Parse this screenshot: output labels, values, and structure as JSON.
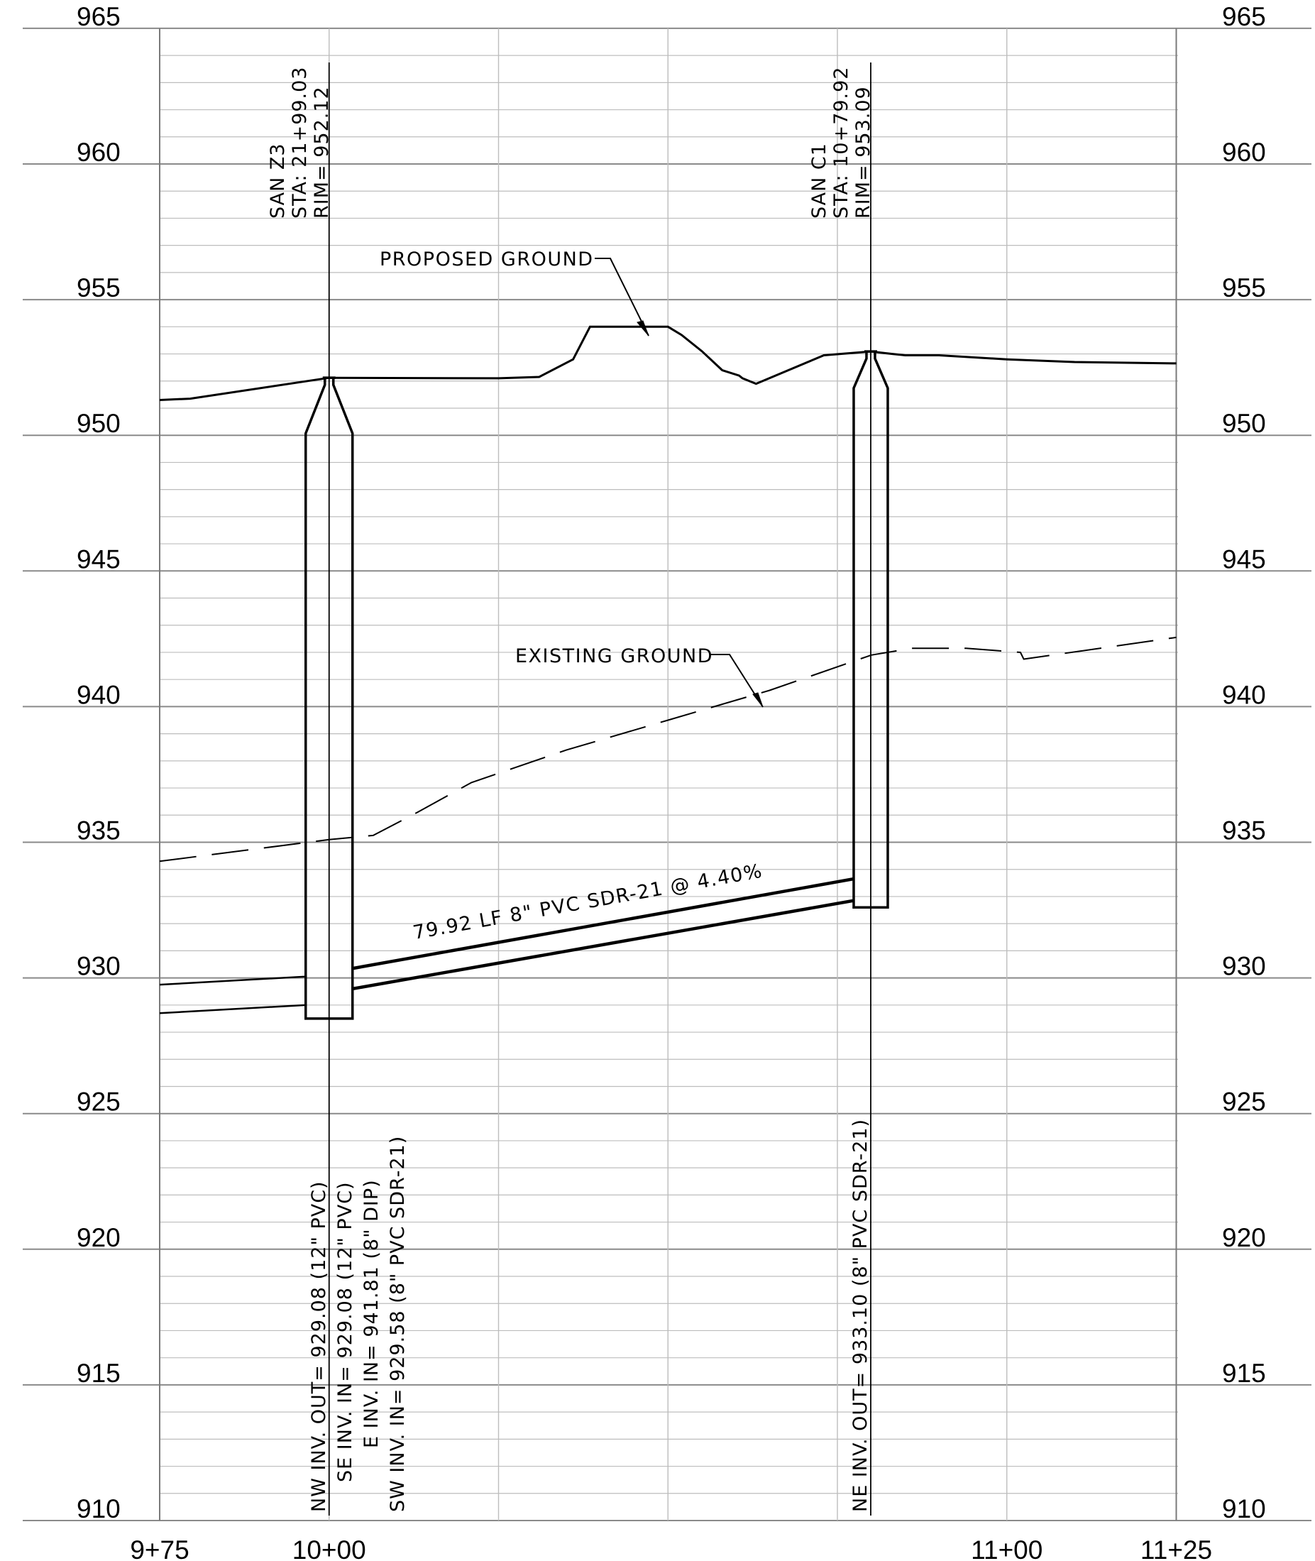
{
  "profile": {
    "elevations": [
      965,
      960,
      955,
      950,
      945,
      940,
      935,
      930,
      925,
      920,
      915,
      910
    ],
    "station_labels": [
      {
        "station": 975,
        "text": "9+75"
      },
      {
        "station": 1000,
        "text": "10+00"
      },
      {
        "station": 1100,
        "text": "11+00"
      },
      {
        "station": 1125,
        "text": "11+25"
      }
    ],
    "manholes": [
      {
        "station": 1000,
        "rim_elev": 952.12,
        "bottom_elev": 928.5,
        "label": [
          "SAN  Z3",
          "STA:  21+99.03",
          "RIM=  952.12"
        ],
        "inverts": [
          "NW INV. OUT=  929.08 (12\" PVC)",
          "SE INV. IN=  929.08 (12\" PVC)",
          "E INV. IN=  941.81 (8\" DIP)",
          "SW INV. IN=  929.58 (8\" PVC SDR-21)"
        ]
      },
      {
        "station": 1079.92,
        "rim_elev": 953.09,
        "bottom_elev": 932.6,
        "label": [
          "SAN  C1",
          "STA:  10+79.92",
          "RIM=  953.09"
        ],
        "inverts": [
          "NE INV. OUT=  933.10 (8\" PVC SDR-21)"
        ]
      }
    ],
    "pipe": {
      "label": "79.92 LF 8\" PVC SDR-21 @ 4.40%",
      "length_lf": 79.92,
      "slope_pct": 4.4
    },
    "proposed_ground": {
      "label": "PROPOSED GROUND",
      "points": [
        [
          975,
          951.3
        ],
        [
          979.5,
          951.35
        ],
        [
          1000,
          952.12
        ],
        [
          1025,
          952.1
        ],
        [
          1031,
          952.15
        ],
        [
          1036,
          952.8
        ],
        [
          1038.5,
          954.0
        ],
        [
          1050,
          954.0
        ],
        [
          1052,
          953.7
        ],
        [
          1055,
          953.1
        ],
        [
          1058,
          952.4
        ],
        [
          1060.5,
          952.2
        ],
        [
          1061,
          952.1
        ],
        [
          1063,
          951.9
        ],
        [
          1073,
          952.95
        ],
        [
          1078,
          953.05
        ],
        [
          1079.92,
          953.09
        ],
        [
          1083,
          953.0
        ],
        [
          1085,
          952.95
        ],
        [
          1090,
          952.95
        ],
        [
          1100,
          952.8
        ],
        [
          1110,
          952.7
        ],
        [
          1125,
          952.65
        ]
      ]
    },
    "existing_ground": {
      "label": "EXISTING GROUND",
      "points": [
        [
          975,
          934.3
        ],
        [
          1000,
          935.1
        ],
        [
          1006.5,
          935.25
        ],
        [
          1013,
          936.1
        ],
        [
          1021,
          937.2
        ],
        [
          1035,
          938.4
        ],
        [
          1050,
          939.5
        ],
        [
          1065,
          940.6
        ],
        [
          1080,
          941.9
        ],
        [
          1086,
          942.15
        ],
        [
          1094,
          942.15
        ],
        [
          1102,
          942.0
        ],
        [
          1102.5,
          941.75
        ],
        [
          1111,
          942.05
        ],
        [
          1125,
          942.55
        ]
      ]
    },
    "upstream_pipe": {
      "top_points": [
        [
          975,
          929.75
        ],
        [
          996.5,
          930.05
        ]
      ],
      "bottom_points": [
        [
          975,
          928.7
        ],
        [
          996.5,
          929.0
        ]
      ]
    }
  }
}
